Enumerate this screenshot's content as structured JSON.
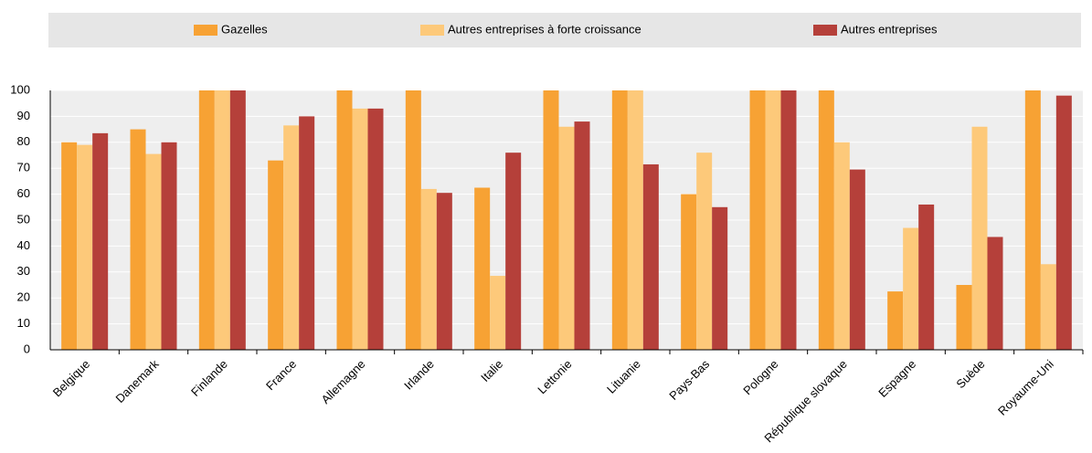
{
  "chart_data": {
    "type": "bar",
    "categories": [
      "Belgique",
      "Danemark",
      "Finlande",
      "France",
      "Allemagne",
      "Irlande",
      "Italie",
      "Lettonie",
      "Lituanie",
      "Pays-Bas",
      "Pologne",
      "République slovaque",
      "Espagne",
      "Suède",
      "Royaume-Uni"
    ],
    "series": [
      {
        "name": "Gazelles",
        "color": "#f7a234",
        "values": [
          80,
          85,
          100,
          73,
          100,
          100,
          62.5,
          100,
          100,
          60,
          100,
          100,
          22.5,
          25,
          100
        ]
      },
      {
        "name": "Autres entreprises à forte croissance",
        "color": "#fdc97a",
        "values": [
          79,
          75.5,
          100,
          86.5,
          93,
          62,
          28.5,
          86,
          100,
          76,
          100,
          80,
          47,
          86,
          33
        ]
      },
      {
        "name": "Autres entreprises",
        "color": "#b5403a",
        "values": [
          83.5,
          80,
          100,
          90,
          93,
          60.5,
          76,
          88,
          71.5,
          55,
          100,
          69.5,
          56,
          43.5,
          98
        ]
      }
    ],
    "ylim": [
      0,
      100
    ],
    "yticks": [
      0,
      10,
      20,
      30,
      40,
      50,
      60,
      70,
      80,
      90,
      100
    ],
    "grid": true,
    "legend": "top"
  }
}
